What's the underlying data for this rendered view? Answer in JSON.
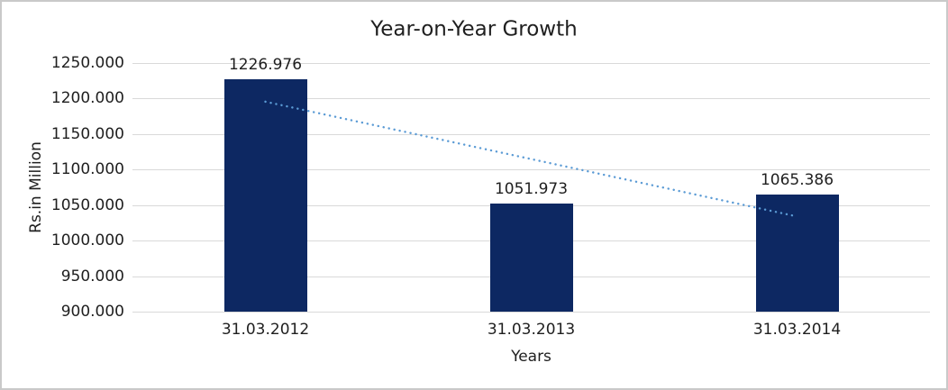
{
  "window": {
    "background_color": "#ffffff",
    "frame_border_color": "#c9c9c9"
  },
  "chart_data": {
    "type": "bar",
    "title": "Year-on-Year Growth",
    "xlabel": "Years",
    "ylabel": "Rs.in Million",
    "categories": [
      "31.03.2012",
      "31.03.2013",
      "31.03.2014"
    ],
    "values": [
      1226.976,
      1051.973,
      1065.386
    ],
    "value_labels": [
      "1226.976",
      "1051.973",
      "1065.386"
    ],
    "ylim": [
      900,
      1250
    ],
    "ytick_labels": [
      "1250.000",
      "1200.000",
      "1150.000",
      "1100.000",
      "1050.000",
      "1000.000",
      "950.000",
      "900.000"
    ],
    "grid": "horizontal",
    "gridline_color": "#d9d9d9",
    "legend_position": "none",
    "bar_color": "#0d2862",
    "text_color": "#1f1f1f",
    "trendline": {
      "type": "linear",
      "style": "dotted",
      "color": "#5b9bd5",
      "start_value": 1195.6,
      "end_value": 1034.0
    }
  }
}
